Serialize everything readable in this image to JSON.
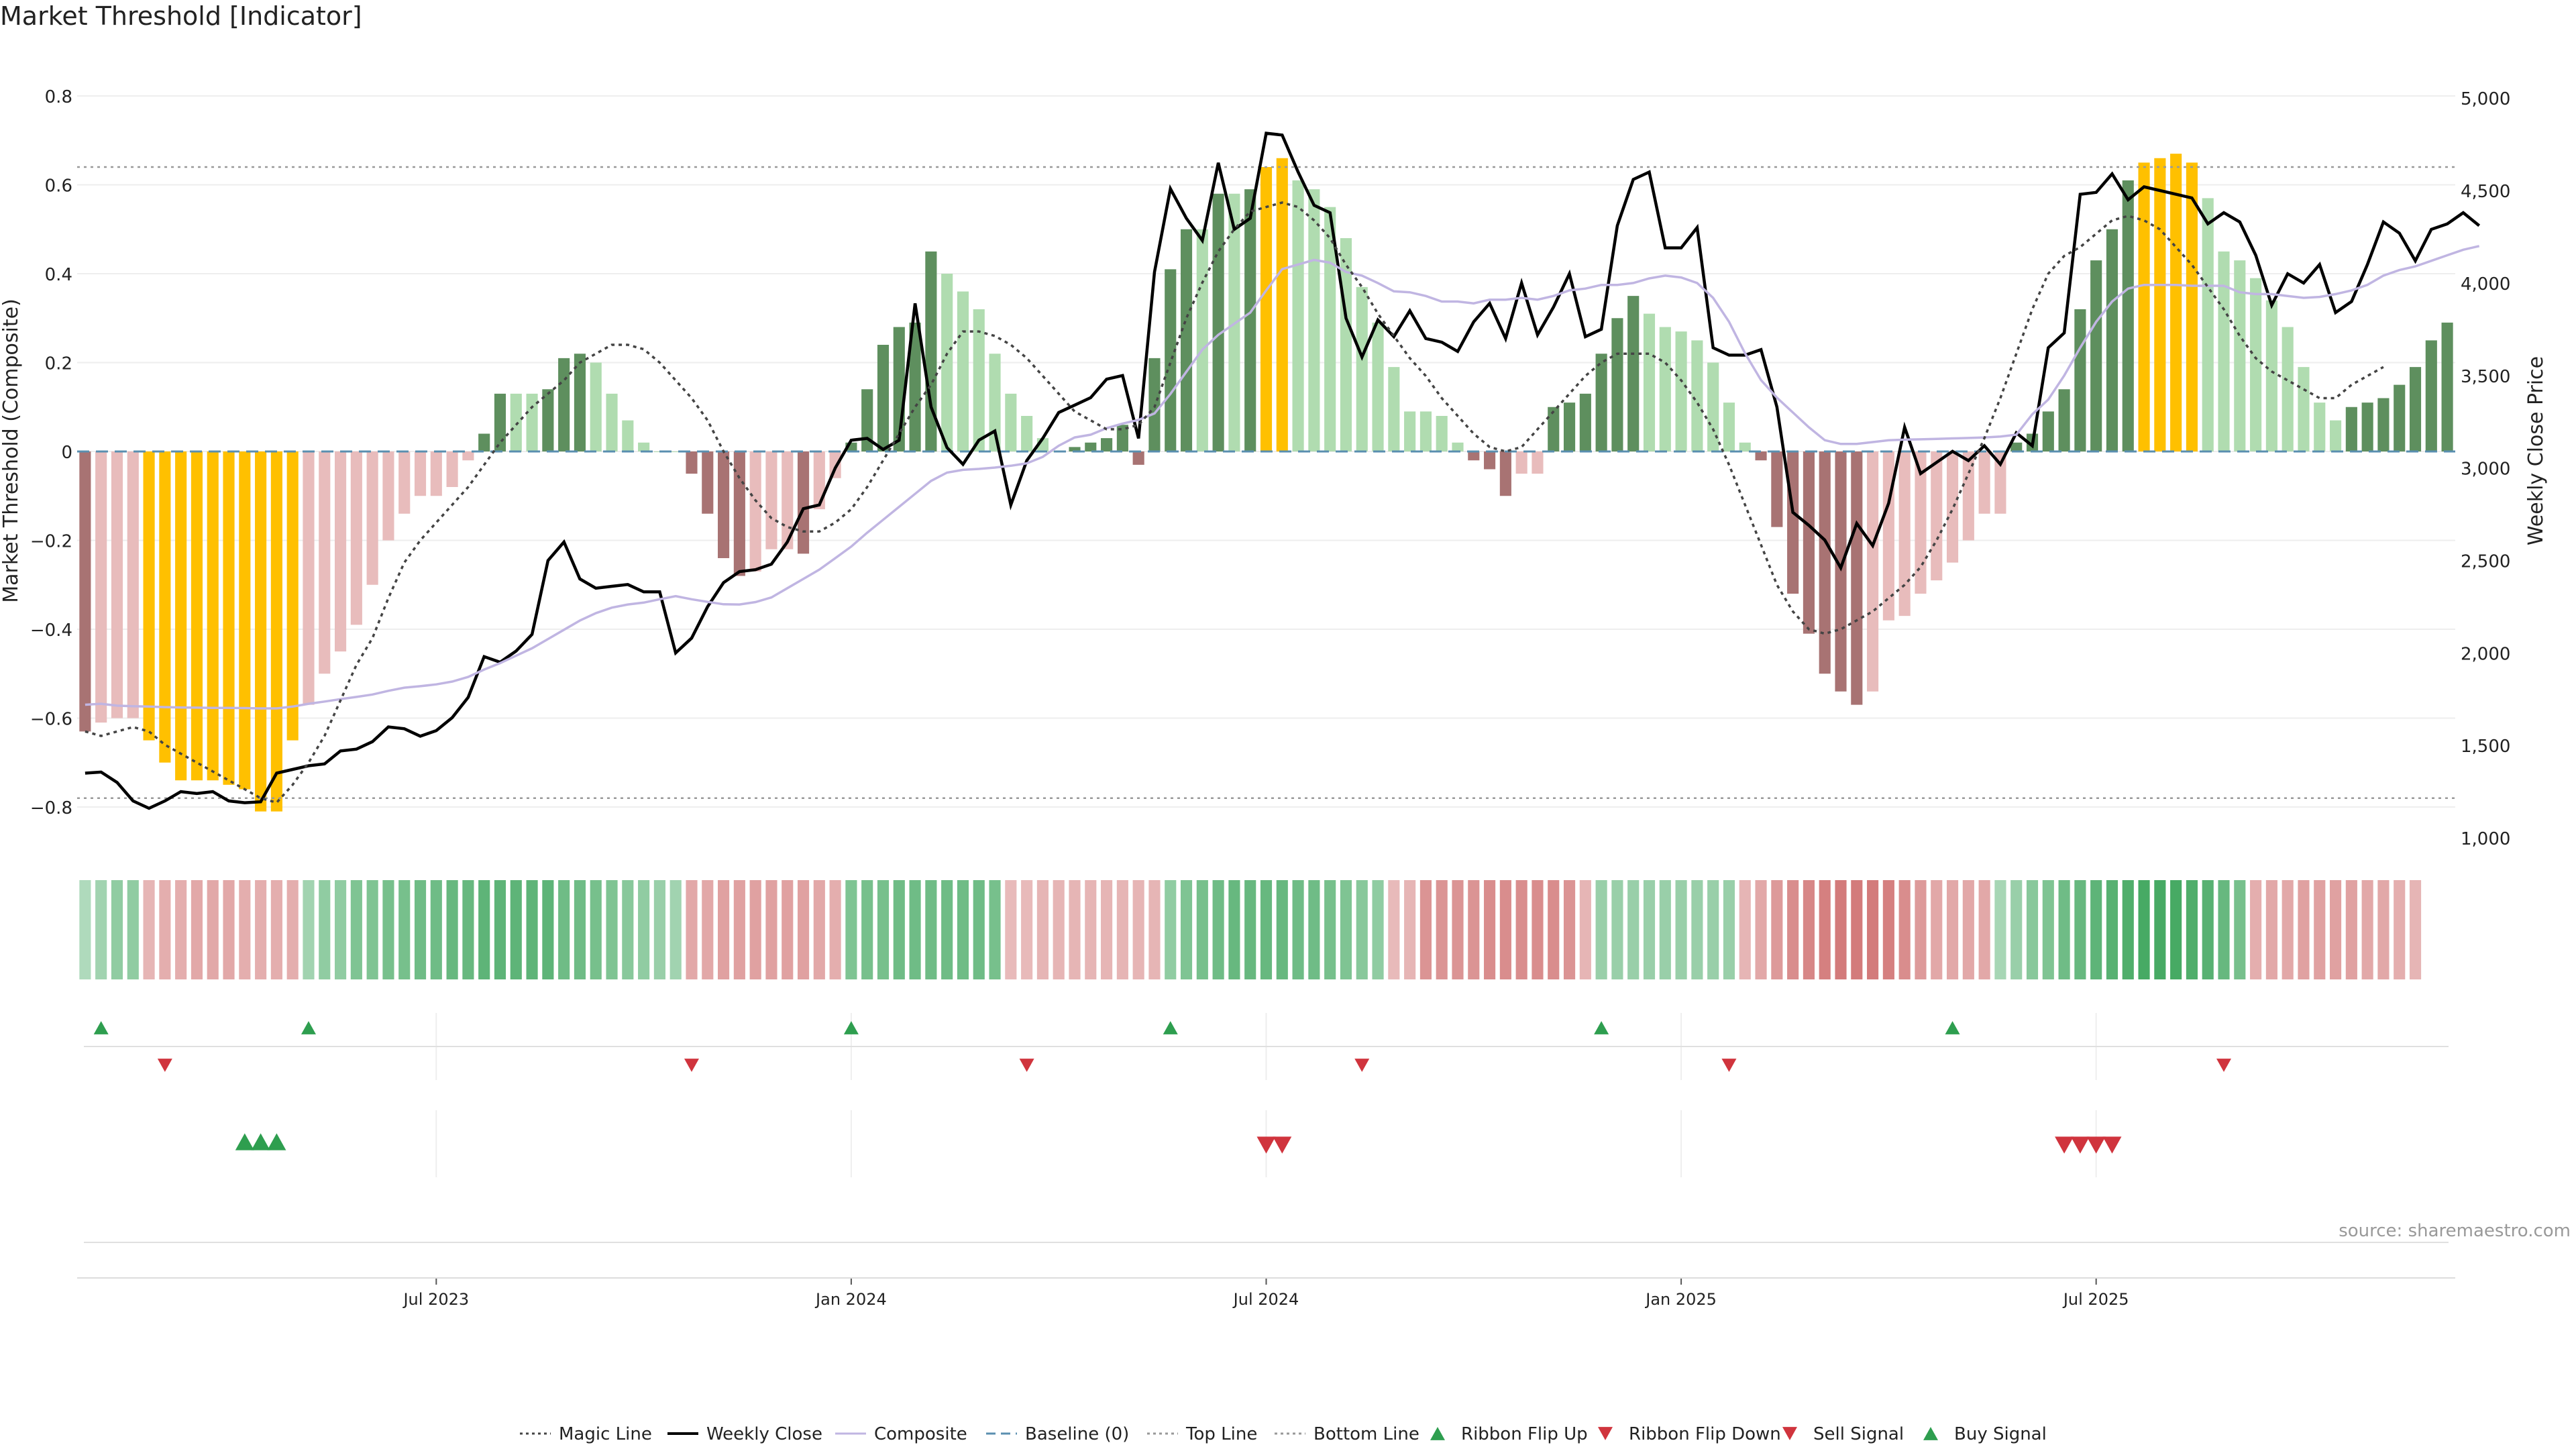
{
  "title": "Market Threshold [Indicator]",
  "source": "source: sharemaestro.com",
  "chart_data": {
    "type": "bar",
    "title": "Market Threshold [Indicator]",
    "ylabel": "Market Threshold (Composite)",
    "y2label": "Weekly Close Price",
    "ylim": [
      -0.9,
      0.9
    ],
    "y2lim": [
      1000,
      5000
    ],
    "yticks": [
      "0.8",
      "0.6",
      "0.4",
      "0.2",
      "0",
      "−0.2",
      "−0.4",
      "−0.6",
      "−0.8"
    ],
    "y2ticks": [
      "5,000",
      "4,500",
      "4,000",
      "3,500",
      "3,000",
      "2,500",
      "2,000",
      "1,500",
      "1,000"
    ],
    "xticks": [
      "Jul 2023",
      "Jan 2024",
      "Jul 2024",
      "Jan 2025",
      "Jul 2025"
    ],
    "xtick_index": [
      22,
      48,
      74,
      100,
      126
    ],
    "top_line": 0.64,
    "bottom_line": -0.78,
    "baseline": 0,
    "composite_bars": [
      -0.63,
      -0.61,
      -0.6,
      -0.6,
      -0.65,
      -0.7,
      -0.74,
      -0.74,
      -0.74,
      -0.75,
      -0.76,
      -0.81,
      -0.81,
      -0.65,
      -0.57,
      -0.5,
      -0.45,
      -0.39,
      -0.3,
      -0.2,
      -0.14,
      -0.1,
      -0.1,
      -0.08,
      -0.02,
      0.04,
      0.13,
      0.13,
      0.13,
      0.14,
      0.21,
      0.22,
      0.2,
      0.13,
      0.07,
      0.02,
      0.0,
      0.0,
      -0.05,
      -0.14,
      -0.24,
      -0.28,
      -0.27,
      -0.22,
      -0.22,
      -0.23,
      -0.13,
      -0.06,
      0.02,
      0.14,
      0.24,
      0.28,
      0.29,
      0.45,
      0.4,
      0.36,
      0.32,
      0.22,
      0.13,
      0.08,
      0.03,
      0.0,
      0.01,
      0.02,
      0.03,
      0.06,
      -0.03,
      0.21,
      0.41,
      0.5,
      0.5,
      0.58,
      0.58,
      0.59,
      0.64,
      0.66,
      0.61,
      0.59,
      0.55,
      0.48,
      0.37,
      0.29,
      0.19,
      0.09,
      0.09,
      0.08,
      0.02,
      -0.02,
      -0.04,
      -0.1,
      -0.05,
      -0.05,
      0.1,
      0.11,
      0.13,
      0.22,
      0.3,
      0.35,
      0.31,
      0.28,
      0.27,
      0.25,
      0.2,
      0.11,
      0.02,
      -0.02,
      -0.17,
      -0.32,
      -0.41,
      -0.5,
      -0.54,
      -0.57,
      -0.54,
      -0.38,
      -0.37,
      -0.32,
      -0.29,
      -0.25,
      -0.2,
      -0.14,
      -0.14,
      0.02,
      0.04,
      0.09,
      0.14,
      0.32,
      0.43,
      0.5,
      0.61,
      0.65,
      0.66,
      0.67,
      0.65,
      0.57,
      0.45,
      0.43,
      0.39,
      0.34,
      0.28,
      0.19,
      0.11,
      0.07,
      0.1,
      0.11,
      0.12,
      0.15,
      0.19,
      0.25,
      0.29
    ],
    "bar_colors": {
      "strong_positive": "#5e8f5e",
      "weak_positive": "#b0dcb0",
      "strong_negative": "#a87373",
      "weak_negative": "#e8bcbc",
      "extreme": "#ffc000"
    },
    "series": [
      {
        "name": "Weekly Close",
        "axis": "right",
        "color": "#000000",
        "values": [
          1350,
          1356,
          1300,
          1200,
          1160,
          1200,
          1250,
          1240,
          1250,
          1200,
          1190,
          1195,
          1350,
          1370,
          1390,
          1400,
          1470,
          1480,
          1520,
          1600,
          1590,
          1550,
          1580,
          1650,
          1760,
          1980,
          1950,
          2010,
          2100,
          2500,
          2600,
          2400,
          2350,
          2360,
          2370,
          2330,
          2330,
          2000,
          2080,
          2250,
          2380,
          2440,
          2450,
          2480,
          2600,
          2780,
          2800,
          3000,
          3150,
          3160,
          3100,
          3150,
          3890,
          3330,
          3110,
          3020,
          3150,
          3200,
          2800,
          3040,
          3160,
          3300,
          3340,
          3380,
          3480,
          3500,
          3160,
          4060,
          4510,
          4350,
          4230,
          4650,
          4290,
          4350,
          4810,
          4800,
          4600,
          4420,
          4380,
          3810,
          3600,
          3800,
          3710,
          3850,
          3700,
          3680,
          3630,
          3790,
          3890,
          3700,
          4000,
          3720,
          3870,
          4050,
          3710,
          3750,
          4310,
          4560,
          4600,
          4190,
          4190,
          4300,
          3650,
          3610,
          3610,
          3640,
          3330,
          2760,
          2690,
          2610,
          2460,
          2700,
          2580,
          2810,
          3220,
          2970,
          3030,
          3090,
          3040,
          3120,
          3020,
          3190,
          3120,
          3650,
          3730,
          4480,
          4490,
          4590,
          4450,
          4520,
          4500,
          4480,
          4460,
          4320,
          4380,
          4330,
          4150,
          3880,
          4050,
          4000,
          4100,
          3840,
          3900,
          4100,
          4330,
          4270,
          4120,
          4290,
          4320,
          4380,
          4310
        ]
      },
      {
        "name": "Composite",
        "axis": "right",
        "color": "#c0b5e2",
        "values": [
          1720,
          1725,
          1715,
          1712,
          1710,
          1707,
          1705,
          1704,
          1703,
          1703,
          1702,
          1700,
          1700,
          1710,
          1725,
          1737,
          1750,
          1762,
          1775,
          1795,
          1812,
          1820,
          1830,
          1845,
          1870,
          1910,
          1945,
          1985,
          2025,
          2075,
          2125,
          2175,
          2215,
          2245,
          2262,
          2272,
          2290,
          2307,
          2290,
          2276,
          2263,
          2262,
          2275,
          2300,
          2350,
          2400,
          2450,
          2512,
          2575,
          2650,
          2720,
          2790,
          2860,
          2930,
          2975,
          2990,
          2995,
          3002,
          3012,
          3025,
          3060,
          3120,
          3165,
          3180,
          3215,
          3240,
          3260,
          3295,
          3400,
          3520,
          3640,
          3720,
          3780,
          3840,
          3960,
          4075,
          4100,
          4125,
          4110,
          4060,
          4040,
          4000,
          3955,
          3950,
          3930,
          3900,
          3900,
          3890,
          3910,
          3910,
          3920,
          3910,
          3930,
          3960,
          3970,
          3990,
          3990,
          4000,
          4025,
          4040,
          4030,
          4000,
          3920,
          3790,
          3620,
          3475,
          3380,
          3300,
          3220,
          3150,
          3130,
          3130,
          3140,
          3150,
          3153,
          3155,
          3157,
          3160,
          3162,
          3165,
          3170,
          3180,
          3290,
          3370,
          3500,
          3650,
          3790,
          3900,
          3970,
          3990,
          3990,
          3990,
          3985,
          3985,
          3985,
          3950,
          3940,
          3940,
          3930,
          3920,
          3925,
          3940,
          3960,
          3990,
          4040,
          4070,
          4090,
          4120,
          4150,
          4180,
          4200
        ]
      },
      {
        "name": "Magic Line",
        "axis": "left",
        "color": "#444444",
        "dash": "dotted",
        "values": [
          -0.63,
          -0.64,
          -0.63,
          -0.62,
          -0.63,
          -0.66,
          -0.68,
          -0.7,
          -0.72,
          -0.74,
          -0.76,
          -0.78,
          -0.79,
          -0.75,
          -0.7,
          -0.64,
          -0.56,
          -0.48,
          -0.42,
          -0.33,
          -0.25,
          -0.2,
          -0.16,
          -0.12,
          -0.08,
          -0.03,
          0.02,
          0.06,
          0.1,
          0.13,
          0.16,
          0.2,
          0.22,
          0.24,
          0.24,
          0.23,
          0.2,
          0.16,
          0.12,
          0.07,
          0.0,
          -0.06,
          -0.11,
          -0.15,
          -0.17,
          -0.18,
          -0.18,
          -0.16,
          -0.13,
          -0.08,
          -0.02,
          0.04,
          0.1,
          0.15,
          0.22,
          0.27,
          0.27,
          0.26,
          0.24,
          0.21,
          0.17,
          0.13,
          0.09,
          0.07,
          0.05,
          0.05,
          0.06,
          0.1,
          0.2,
          0.3,
          0.38,
          0.45,
          0.5,
          0.54,
          0.55,
          0.56,
          0.55,
          0.52,
          0.48,
          0.42,
          0.37,
          0.31,
          0.26,
          0.21,
          0.17,
          0.12,
          0.08,
          0.04,
          0.01,
          0.0,
          0.01,
          0.05,
          0.09,
          0.13,
          0.17,
          0.2,
          0.22,
          0.22,
          0.22,
          0.2,
          0.16,
          0.11,
          0.05,
          -0.03,
          -0.12,
          -0.21,
          -0.3,
          -0.36,
          -0.4,
          -0.41,
          -0.4,
          -0.38,
          -0.36,
          -0.33,
          -0.3,
          -0.26,
          -0.2,
          -0.13,
          -0.05,
          0.03,
          0.12,
          0.22,
          0.32,
          0.4,
          0.44,
          0.46,
          0.49,
          0.52,
          0.53,
          0.52,
          0.5,
          0.46,
          0.42,
          0.37,
          0.32,
          0.26,
          0.21,
          0.18,
          0.16,
          0.14,
          0.12,
          0.12,
          0.15,
          0.17,
          0.19
        ]
      }
    ],
    "ribbon": {
      "label": "Ribbon",
      "values": [
        0.2,
        0.3,
        0.4,
        0.4,
        -0.3,
        -0.35,
        -0.35,
        -0.4,
        -0.4,
        -0.4,
        -0.35,
        -0.35,
        -0.35,
        -0.35,
        0.3,
        0.4,
        0.4,
        0.5,
        0.5,
        0.55,
        0.55,
        0.6,
        0.6,
        0.65,
        0.65,
        0.7,
        0.7,
        0.7,
        0.7,
        0.7,
        0.6,
        0.6,
        0.55,
        0.5,
        0.45,
        0.4,
        0.35,
        0.3,
        -0.4,
        -0.4,
        -0.45,
        -0.45,
        -0.45,
        -0.45,
        -0.45,
        -0.45,
        -0.4,
        -0.35,
        0.5,
        0.55,
        0.55,
        0.6,
        0.6,
        0.6,
        0.6,
        0.6,
        0.6,
        0.55,
        -0.25,
        -0.25,
        -0.3,
        -0.3,
        -0.3,
        -0.3,
        -0.3,
        -0.3,
        -0.3,
        -0.3,
        0.4,
        0.5,
        0.55,
        0.6,
        0.65,
        0.65,
        0.65,
        0.65,
        0.6,
        0.6,
        0.55,
        0.5,
        0.45,
        0.4,
        -0.25,
        -0.3,
        -0.55,
        -0.55,
        -0.55,
        -0.55,
        -0.6,
        -0.6,
        -0.6,
        -0.6,
        -0.6,
        -0.55,
        -0.3,
        0.35,
        0.35,
        0.35,
        0.35,
        0.35,
        0.35,
        0.35,
        0.35,
        0.35,
        -0.3,
        -0.4,
        -0.5,
        -0.6,
        -0.65,
        -0.7,
        -0.75,
        -0.75,
        -0.75,
        -0.7,
        -0.6,
        -0.5,
        -0.4,
        -0.4,
        -0.4,
        -0.4,
        0.25,
        0.35,
        0.45,
        0.5,
        0.6,
        0.65,
        0.7,
        0.75,
        0.8,
        0.85,
        0.85,
        0.85,
        0.8,
        0.75,
        0.65,
        0.55,
        -0.35,
        -0.4,
        -0.4,
        -0.45,
        -0.45,
        -0.45,
        -0.45,
        -0.4,
        -0.4,
        -0.35,
        -0.3
      ]
    },
    "ribbon_flip_up": [
      1,
      14,
      48,
      68,
      95,
      117
    ],
    "ribbon_flip_down": [
      5,
      38,
      59,
      80,
      103,
      134
    ],
    "buy_signal": [
      10,
      11,
      12
    ],
    "sell_signal": [
      74,
      75,
      124,
      125,
      126,
      127
    ],
    "legend": [
      {
        "label": "Magic Line",
        "kind": "line",
        "color": "#444444",
        "dash": "dotted"
      },
      {
        "label": "Weekly Close",
        "kind": "line",
        "color": "#000000"
      },
      {
        "label": "Composite",
        "kind": "line",
        "color": "#c0b5e2"
      },
      {
        "label": "Baseline (0)",
        "kind": "line",
        "color": "#5a8fb0",
        "dash": "dashed"
      },
      {
        "label": "Top Line",
        "kind": "line",
        "color": "#999999",
        "dash": "dotted"
      },
      {
        "label": "Bottom Line",
        "kind": "line",
        "color": "#999999",
        "dash": "dotted"
      },
      {
        "label": "Ribbon Flip Up",
        "kind": "tri-up",
        "color": "#2e9e4f"
      },
      {
        "label": "Ribbon Flip Down",
        "kind": "tri-down",
        "color": "#d0343d"
      },
      {
        "label": "Sell Signal",
        "kind": "tri-down",
        "color": "#d0343d"
      },
      {
        "label": "Buy Signal",
        "kind": "tri-up",
        "color": "#2e9e4f"
      }
    ]
  }
}
